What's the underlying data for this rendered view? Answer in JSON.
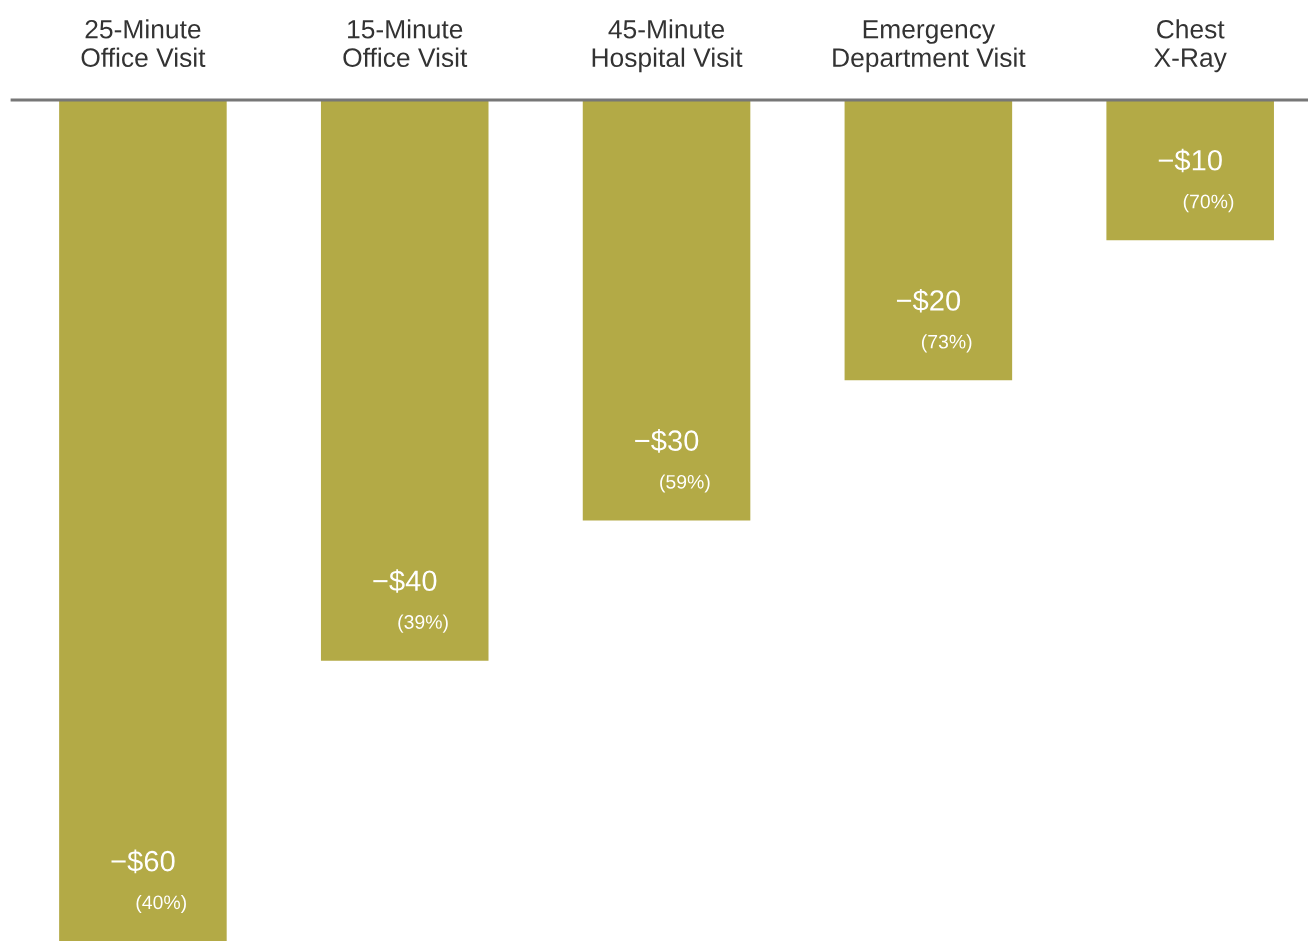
{
  "chart_data": {
    "type": "bar",
    "categories": [
      "25-Minute\nOffice Visit",
      "15-Minute\nOffice Visit",
      "45-Minute\nHospital Visit",
      "Emergency\nDepartment Visit",
      "Chest\nX-Ray"
    ],
    "values": [
      -60,
      -40,
      -30,
      -20,
      -10
    ],
    "color": "#b3aa46",
    "ylim": [
      -60,
      0
    ],
    "value_labels": [
      "−$60\n(40%)",
      "−$40\n(39%)",
      "−$30\n(59%)",
      "−$20\n(73%)",
      "−$10\n(70%)"
    ],
    "grid": false
  }
}
